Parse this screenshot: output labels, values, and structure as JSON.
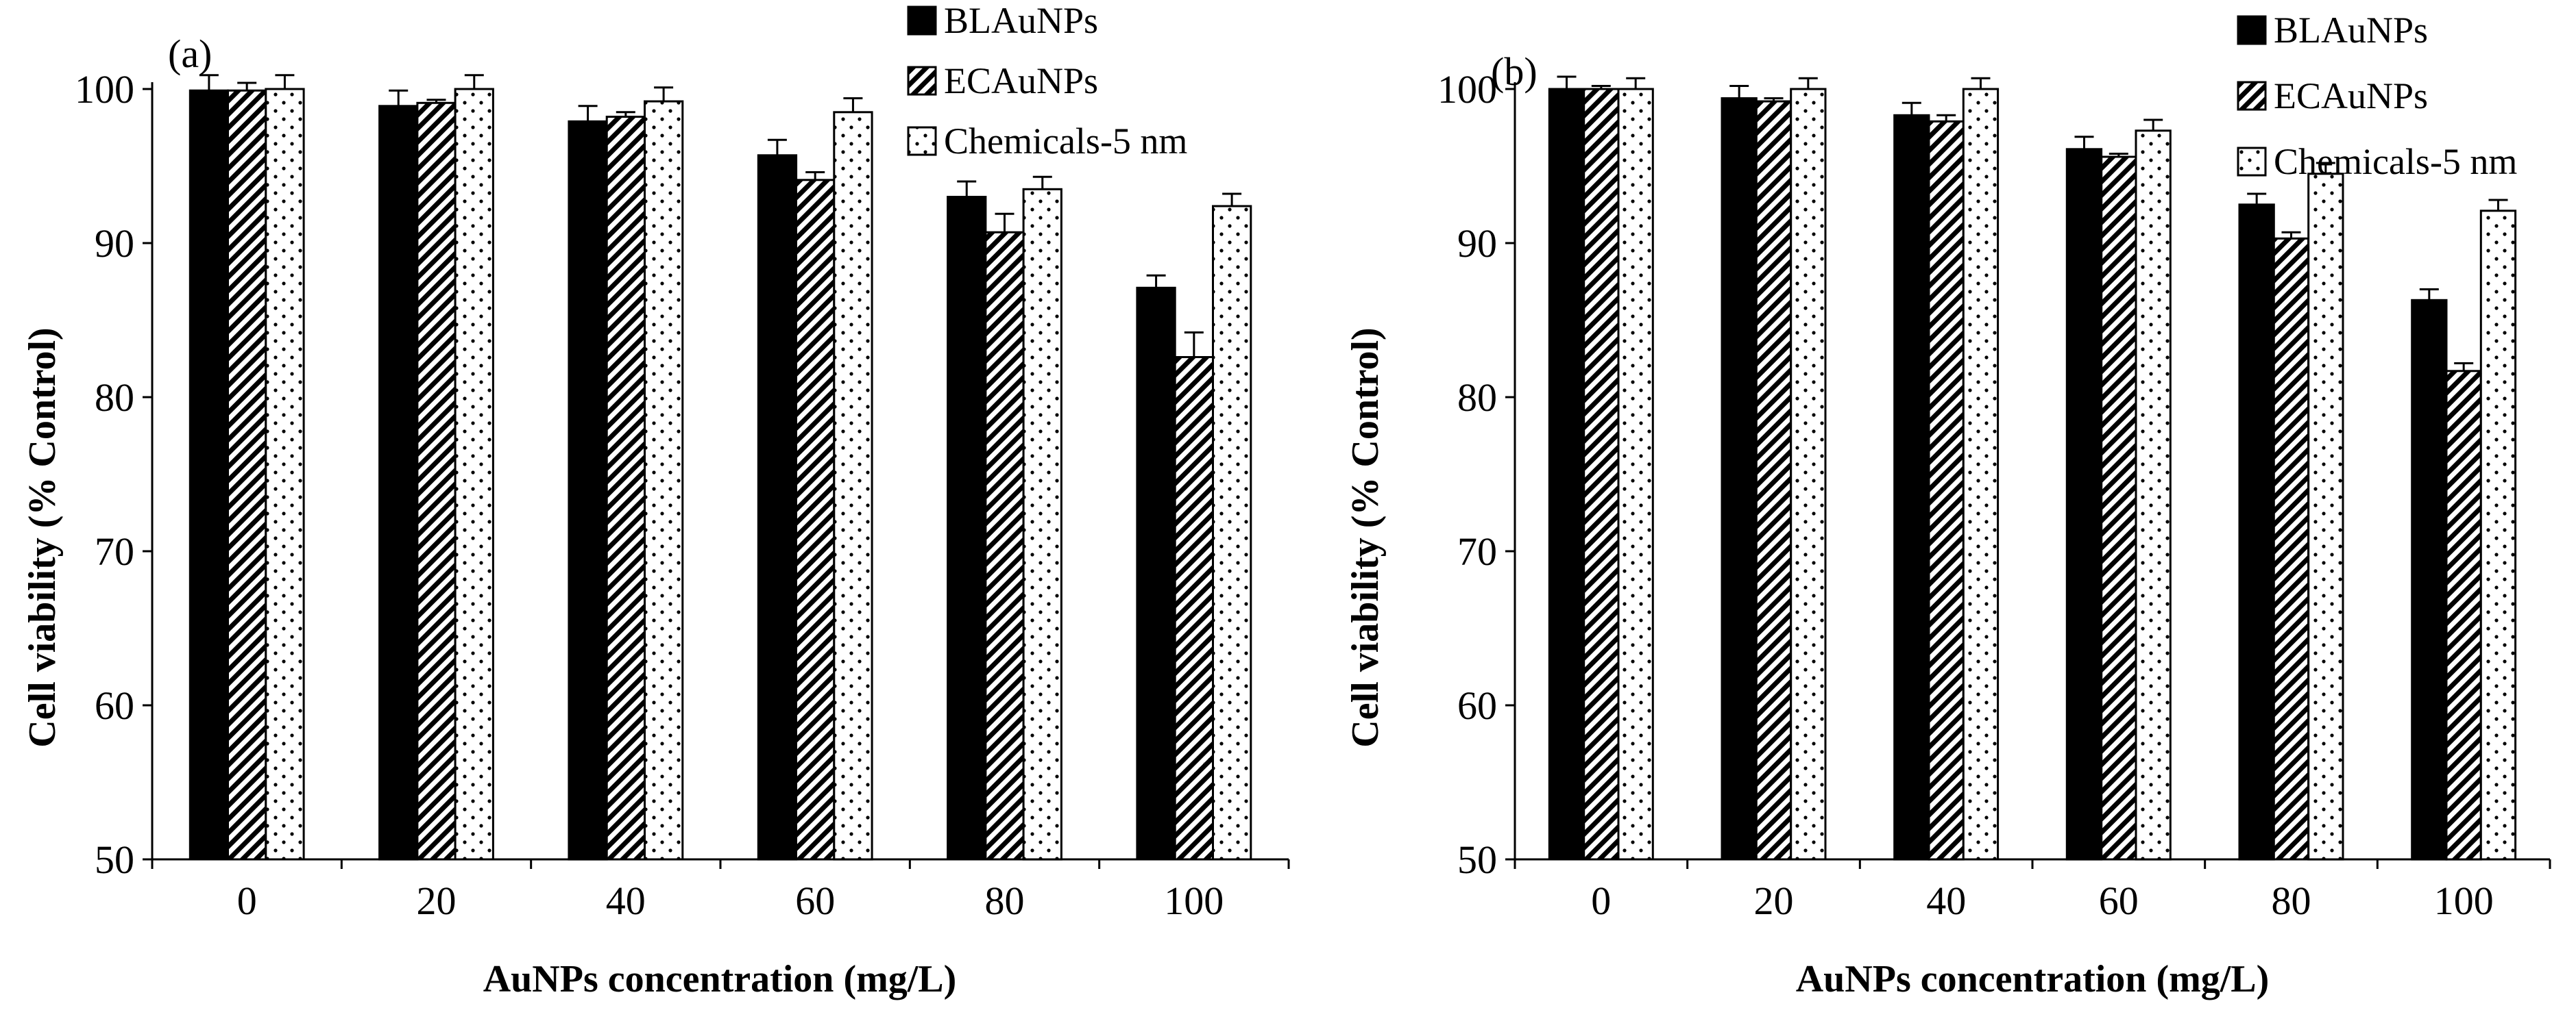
{
  "chart_data": [
    {
      "type": "bar",
      "panel_label": "(a)",
      "categories": [
        "0",
        "20",
        "40",
        "60",
        "80",
        "100"
      ],
      "xlabel": "AuNPs concentration (mg/L)",
      "ylabel": "Cell viability (% Control)",
      "ylim": [
        50,
        100
      ],
      "yticks": [
        50,
        60,
        70,
        80,
        90,
        100
      ],
      "legend_position": "top-right",
      "grid": false,
      "error_bars": true,
      "series": [
        {
          "name": "BLAuNPs",
          "pattern": "solid",
          "color": "#000000",
          "values": [
            99.9,
            98.9,
            97.9,
            95.7,
            93.0,
            87.1
          ],
          "errors": [
            1.0,
            1.0,
            1.0,
            1.0,
            1.0,
            0.8
          ]
        },
        {
          "name": "ECAuNPs",
          "pattern": "diagonal-hatch",
          "color": "#000000",
          "values": [
            99.9,
            99.1,
            98.2,
            94.1,
            90.7,
            82.6
          ],
          "errors": [
            0.5,
            0.2,
            0.3,
            0.5,
            1.2,
            1.6
          ]
        },
        {
          "name": "Chemicals-5 nm",
          "pattern": "dots",
          "color": "#000000",
          "values": [
            100.0,
            100.0,
            99.2,
            98.5,
            93.5,
            92.4
          ],
          "errors": [
            0.9,
            0.9,
            0.9,
            0.9,
            0.8,
            0.8
          ]
        }
      ]
    },
    {
      "type": "bar",
      "panel_label": "(b)",
      "categories": [
        "0",
        "20",
        "40",
        "60",
        "80",
        "100"
      ],
      "xlabel": "AuNPs concentration (mg/L)",
      "ylabel": "Cell viability (% Control)",
      "ylim": [
        50,
        100
      ],
      "yticks": [
        50,
        60,
        70,
        80,
        90,
        100
      ],
      "legend_position": "top-right",
      "grid": false,
      "error_bars": true,
      "series": [
        {
          "name": "BLAuNPs",
          "pattern": "solid",
          "color": "#000000",
          "values": [
            100.0,
            99.4,
            98.3,
            96.1,
            92.5,
            86.3
          ],
          "errors": [
            0.8,
            0.8,
            0.8,
            0.8,
            0.7,
            0.7
          ]
        },
        {
          "name": "ECAuNPs",
          "pattern": "diagonal-hatch",
          "color": "#000000",
          "values": [
            100.0,
            99.2,
            97.9,
            95.6,
            90.3,
            81.7
          ],
          "errors": [
            0.2,
            0.2,
            0.4,
            0.2,
            0.4,
            0.5
          ]
        },
        {
          "name": "Chemicals-5 nm",
          "pattern": "dots",
          "color": "#000000",
          "values": [
            100.0,
            100.0,
            100.0,
            97.3,
            94.5,
            92.1
          ],
          "errors": [
            0.7,
            0.7,
            0.7,
            0.7,
            0.7,
            0.7
          ]
        }
      ]
    }
  ]
}
